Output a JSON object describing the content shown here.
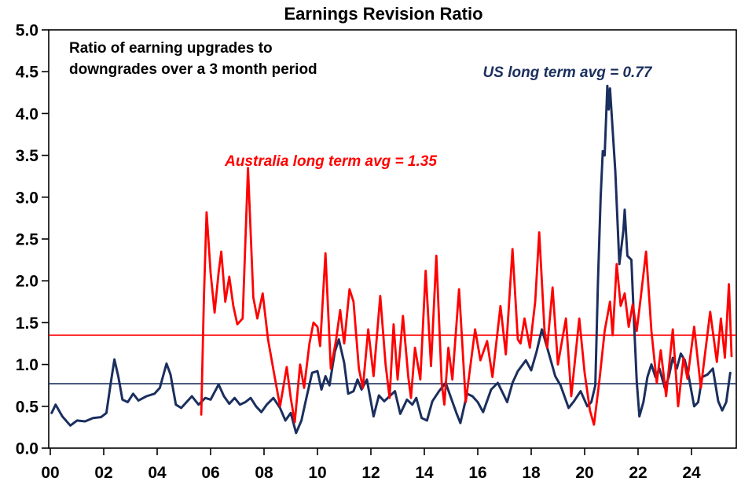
{
  "chart_data": {
    "type": "line",
    "title": "Earnings Revision Ratio",
    "subtitle_lines": [
      "Ratio of earning upgrades to",
      "downgrades over a 3 month period"
    ],
    "colors": {
      "australia": "#FF0000",
      "us": "#1B2F5E",
      "axis": "#000000",
      "background": "#FFFFFF"
    },
    "x_axis": {
      "min": 2000,
      "max": 2025.75,
      "tick_years": [
        2000,
        2002,
        2004,
        2006,
        2008,
        2010,
        2012,
        2014,
        2016,
        2018,
        2020,
        2022,
        2024
      ],
      "tick_labels": [
        "00",
        "02",
        "04",
        "06",
        "08",
        "10",
        "12",
        "14",
        "16",
        "18",
        "20",
        "22",
        "24"
      ]
    },
    "y_axis": {
      "min": 0,
      "max": 5,
      "tick_step": 0.5,
      "tick_labels": [
        "0.0",
        "0.5",
        "1.0",
        "1.5",
        "2.0",
        "2.5",
        "3.0",
        "3.5",
        "4.0",
        "4.5",
        "5.0"
      ]
    },
    "avg_lines": [
      {
        "series": "australia",
        "value": 1.35,
        "label": "Australia long term avg = 1.35",
        "color": "#FF0000"
      },
      {
        "series": "us",
        "value": 0.77,
        "label": "US long term avg = 0.77",
        "color": "#1B2F5E"
      }
    ],
    "series": [
      {
        "name": "US",
        "color": "#1B2F5E",
        "points": [
          [
            2000.05,
            0.42
          ],
          [
            2000.2,
            0.52
          ],
          [
            2000.45,
            0.38
          ],
          [
            2000.75,
            0.27
          ],
          [
            2001.0,
            0.33
          ],
          [
            2001.3,
            0.32
          ],
          [
            2001.6,
            0.36
          ],
          [
            2001.9,
            0.37
          ],
          [
            2002.1,
            0.42
          ],
          [
            2002.25,
            0.75
          ],
          [
            2002.4,
            1.06
          ],
          [
            2002.55,
            0.85
          ],
          [
            2002.7,
            0.58
          ],
          [
            2002.9,
            0.55
          ],
          [
            2003.1,
            0.65
          ],
          [
            2003.3,
            0.57
          ],
          [
            2003.6,
            0.62
          ],
          [
            2003.9,
            0.65
          ],
          [
            2004.1,
            0.72
          ],
          [
            2004.35,
            1.01
          ],
          [
            2004.5,
            0.88
          ],
          [
            2004.7,
            0.52
          ],
          [
            2004.9,
            0.48
          ],
          [
            2005.1,
            0.55
          ],
          [
            2005.3,
            0.62
          ],
          [
            2005.55,
            0.52
          ],
          [
            2005.8,
            0.6
          ],
          [
            2006.0,
            0.58
          ],
          [
            2006.3,
            0.76
          ],
          [
            2006.5,
            0.62
          ],
          [
            2006.7,
            0.53
          ],
          [
            2006.9,
            0.6
          ],
          [
            2007.1,
            0.52
          ],
          [
            2007.3,
            0.55
          ],
          [
            2007.5,
            0.6
          ],
          [
            2007.7,
            0.5
          ],
          [
            2007.9,
            0.43
          ],
          [
            2008.1,
            0.52
          ],
          [
            2008.35,
            0.6
          ],
          [
            2008.6,
            0.48
          ],
          [
            2008.8,
            0.33
          ],
          [
            2009.0,
            0.42
          ],
          [
            2009.2,
            0.18
          ],
          [
            2009.4,
            0.33
          ],
          [
            2009.6,
            0.62
          ],
          [
            2009.8,
            0.9
          ],
          [
            2010.0,
            0.92
          ],
          [
            2010.15,
            0.7
          ],
          [
            2010.3,
            0.86
          ],
          [
            2010.45,
            0.75
          ],
          [
            2010.65,
            1.15
          ],
          [
            2010.8,
            1.3
          ],
          [
            2011.0,
            1.02
          ],
          [
            2011.15,
            0.65
          ],
          [
            2011.35,
            0.68
          ],
          [
            2011.5,
            0.82
          ],
          [
            2011.65,
            0.7
          ],
          [
            2011.85,
            0.82
          ],
          [
            2012.1,
            0.38
          ],
          [
            2012.3,
            0.63
          ],
          [
            2012.5,
            0.56
          ],
          [
            2012.7,
            0.62
          ],
          [
            2012.9,
            0.68
          ],
          [
            2013.1,
            0.41
          ],
          [
            2013.35,
            0.58
          ],
          [
            2013.55,
            0.52
          ],
          [
            2013.7,
            0.6
          ],
          [
            2013.9,
            0.36
          ],
          [
            2014.1,
            0.33
          ],
          [
            2014.3,
            0.56
          ],
          [
            2014.55,
            0.68
          ],
          [
            2014.8,
            0.78
          ],
          [
            2015.0,
            0.6
          ],
          [
            2015.2,
            0.42
          ],
          [
            2015.35,
            0.3
          ],
          [
            2015.6,
            0.65
          ],
          [
            2015.8,
            0.62
          ],
          [
            2016.0,
            0.55
          ],
          [
            2016.2,
            0.43
          ],
          [
            2016.5,
            0.7
          ],
          [
            2016.75,
            0.78
          ],
          [
            2016.95,
            0.65
          ],
          [
            2017.1,
            0.55
          ],
          [
            2017.3,
            0.78
          ],
          [
            2017.5,
            0.92
          ],
          [
            2017.8,
            1.05
          ],
          [
            2018.0,
            0.93
          ],
          [
            2018.2,
            1.15
          ],
          [
            2018.4,
            1.42
          ],
          [
            2018.6,
            1.2
          ],
          [
            2018.9,
            0.86
          ],
          [
            2019.1,
            0.75
          ],
          [
            2019.4,
            0.48
          ],
          [
            2019.6,
            0.56
          ],
          [
            2019.85,
            0.68
          ],
          [
            2020.1,
            0.5
          ],
          [
            2020.25,
            0.55
          ],
          [
            2020.4,
            0.75
          ],
          [
            2020.5,
            2.0
          ],
          [
            2020.6,
            3.0
          ],
          [
            2020.68,
            3.55
          ],
          [
            2020.75,
            3.5
          ],
          [
            2020.85,
            4.33
          ],
          [
            2020.9,
            4.05
          ],
          [
            2020.95,
            4.3
          ],
          [
            2021.05,
            3.8
          ],
          [
            2021.15,
            3.3
          ],
          [
            2021.3,
            2.2
          ],
          [
            2021.45,
            2.6
          ],
          [
            2021.5,
            2.85
          ],
          [
            2021.6,
            2.3
          ],
          [
            2021.75,
            2.25
          ],
          [
            2021.85,
            1.5
          ],
          [
            2021.95,
            0.8
          ],
          [
            2022.05,
            0.38
          ],
          [
            2022.2,
            0.55
          ],
          [
            2022.35,
            0.85
          ],
          [
            2022.5,
            1.0
          ],
          [
            2022.65,
            0.85
          ],
          [
            2022.8,
            0.95
          ],
          [
            2023.0,
            0.72
          ],
          [
            2023.15,
            0.85
          ],
          [
            2023.3,
            1.08
          ],
          [
            2023.45,
            0.95
          ],
          [
            2023.6,
            1.13
          ],
          [
            2023.75,
            1.05
          ],
          [
            2023.9,
            0.85
          ],
          [
            2024.1,
            0.5
          ],
          [
            2024.25,
            0.55
          ],
          [
            2024.4,
            0.85
          ],
          [
            2024.6,
            0.88
          ],
          [
            2024.8,
            0.95
          ],
          [
            2025.0,
            0.56
          ],
          [
            2025.15,
            0.45
          ],
          [
            2025.3,
            0.55
          ],
          [
            2025.45,
            0.9
          ]
        ]
      },
      {
        "name": "Australia",
        "color": "#FF0000",
        "points": [
          [
            2005.65,
            0.4
          ],
          [
            2005.75,
            1.8
          ],
          [
            2005.85,
            2.82
          ],
          [
            2006.0,
            2.1
          ],
          [
            2006.15,
            1.62
          ],
          [
            2006.3,
            2.1
          ],
          [
            2006.4,
            2.35
          ],
          [
            2006.55,
            1.75
          ],
          [
            2006.7,
            2.05
          ],
          [
            2006.85,
            1.7
          ],
          [
            2007.0,
            1.48
          ],
          [
            2007.2,
            1.55
          ],
          [
            2007.4,
            3.35
          ],
          [
            2007.6,
            1.8
          ],
          [
            2007.75,
            1.55
          ],
          [
            2007.95,
            1.85
          ],
          [
            2008.15,
            1.3
          ],
          [
            2008.4,
            0.85
          ],
          [
            2008.6,
            0.5
          ],
          [
            2008.85,
            0.97
          ],
          [
            2009.0,
            0.6
          ],
          [
            2009.15,
            0.31
          ],
          [
            2009.35,
            1.0
          ],
          [
            2009.5,
            0.72
          ],
          [
            2009.7,
            1.25
          ],
          [
            2009.85,
            1.5
          ],
          [
            2010.0,
            1.45
          ],
          [
            2010.1,
            1.22
          ],
          [
            2010.3,
            2.33
          ],
          [
            2010.5,
            0.95
          ],
          [
            2010.7,
            1.3
          ],
          [
            2010.85,
            1.65
          ],
          [
            2011.0,
            1.25
          ],
          [
            2011.2,
            1.9
          ],
          [
            2011.35,
            1.75
          ],
          [
            2011.55,
            0.95
          ],
          [
            2011.7,
            0.72
          ],
          [
            2011.9,
            1.42
          ],
          [
            2012.1,
            0.86
          ],
          [
            2012.35,
            1.82
          ],
          [
            2012.55,
            1.0
          ],
          [
            2012.7,
            0.6
          ],
          [
            2012.85,
            1.48
          ],
          [
            2013.0,
            0.82
          ],
          [
            2013.2,
            1.58
          ],
          [
            2013.4,
            0.85
          ],
          [
            2013.5,
            0.6
          ],
          [
            2013.65,
            1.2
          ],
          [
            2013.85,
            0.82
          ],
          [
            2014.05,
            2.12
          ],
          [
            2014.25,
            0.98
          ],
          [
            2014.45,
            2.3
          ],
          [
            2014.65,
            0.78
          ],
          [
            2014.75,
            0.52
          ],
          [
            2014.9,
            1.2
          ],
          [
            2015.05,
            0.82
          ],
          [
            2015.3,
            1.9
          ],
          [
            2015.55,
            0.55
          ],
          [
            2015.9,
            1.42
          ],
          [
            2016.1,
            1.05
          ],
          [
            2016.35,
            1.28
          ],
          [
            2016.55,
            0.85
          ],
          [
            2016.85,
            1.7
          ],
          [
            2017.05,
            1.12
          ],
          [
            2017.3,
            2.38
          ],
          [
            2017.5,
            1.3
          ],
          [
            2017.6,
            1.25
          ],
          [
            2017.75,
            1.55
          ],
          [
            2017.95,
            1.2
          ],
          [
            2018.15,
            1.75
          ],
          [
            2018.3,
            2.58
          ],
          [
            2018.5,
            1.4
          ],
          [
            2018.6,
            1.2
          ],
          [
            2018.8,
            1.92
          ],
          [
            2019.0,
            1.0
          ],
          [
            2019.3,
            1.55
          ],
          [
            2019.5,
            0.62
          ],
          [
            2019.8,
            1.55
          ],
          [
            2020.0,
            0.9
          ],
          [
            2020.2,
            0.45
          ],
          [
            2020.35,
            0.28
          ],
          [
            2020.55,
            0.8
          ],
          [
            2020.75,
            1.4
          ],
          [
            2020.95,
            1.75
          ],
          [
            2021.05,
            1.35
          ],
          [
            2021.2,
            2.2
          ],
          [
            2021.35,
            1.7
          ],
          [
            2021.5,
            1.85
          ],
          [
            2021.65,
            1.45
          ],
          [
            2021.8,
            1.72
          ],
          [
            2021.95,
            1.4
          ],
          [
            2022.1,
            1.8
          ],
          [
            2022.3,
            2.35
          ],
          [
            2022.5,
            1.4
          ],
          [
            2022.7,
            0.78
          ],
          [
            2022.85,
            1.17
          ],
          [
            2023.05,
            0.62
          ],
          [
            2023.3,
            1.42
          ],
          [
            2023.5,
            0.5
          ],
          [
            2023.7,
            1.08
          ],
          [
            2023.85,
            0.83
          ],
          [
            2024.1,
            1.45
          ],
          [
            2024.35,
            0.72
          ],
          [
            2024.7,
            1.63
          ],
          [
            2024.95,
            1.03
          ],
          [
            2025.1,
            1.55
          ],
          [
            2025.25,
            1.08
          ],
          [
            2025.4,
            1.96
          ],
          [
            2025.5,
            1.1
          ]
        ]
      }
    ]
  }
}
